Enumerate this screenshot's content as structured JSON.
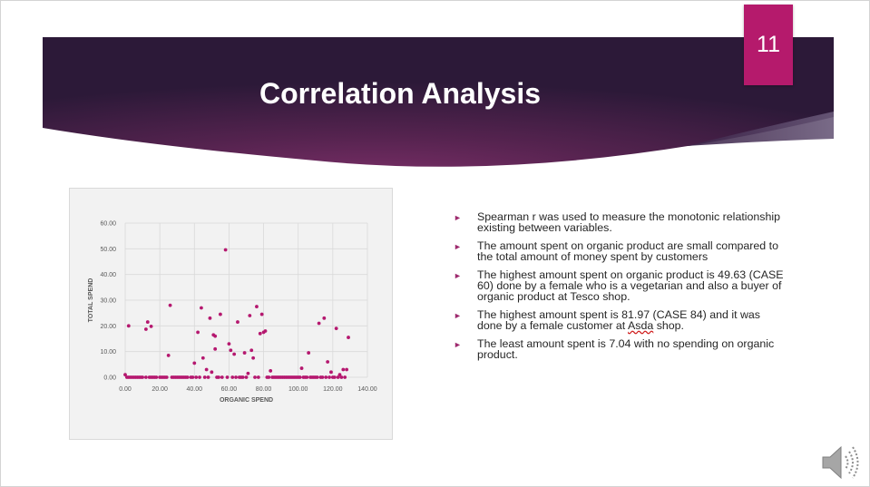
{
  "slide": {
    "number": "11",
    "title": "Correlation Analysis"
  },
  "bullets": [
    {
      "text": "Spearman r was used to measure the monotonic relationship existing between variables."
    },
    {
      "text": "The amount spent on organic product are small compared to the total amount of money spent by customers"
    },
    {
      "text": "The highest amount spent on organic product is 49.63 (CASE 60) done by a female who is a vegetarian and also a buyer of organic product at Tesco shop."
    },
    {
      "text_before": " The highest amount spent is 81.97 (CASE 84) and it was done by a female customer at ",
      "text_flagged": "Asda",
      "text_after": " shop."
    },
    {
      "text": "The least amount spent is 7.04 with no spending on organic product."
    }
  ],
  "icons": {
    "bullet": "triangle-right-icon",
    "audio": "speaker-icon"
  },
  "colors": {
    "banner_dark": "#3a1d45",
    "banner_mid": "#6e2a5f",
    "slide_number_bg": "#b51a6c",
    "marker": "#b5186f",
    "bullet_arrow": "#9e2a6e"
  },
  "chart_data": {
    "type": "scatter",
    "title": "",
    "xlabel": "ORGANIC SPEND",
    "ylabel": "TOTAL SPEND",
    "xlim": [
      0,
      140
    ],
    "ylim": [
      0,
      60
    ],
    "xticks": [
      "0.00",
      "20.00",
      "40.00",
      "60.00",
      "80.00",
      "100.00",
      "120.00",
      "140.00"
    ],
    "yticks": [
      "0.00",
      "10.00",
      "20.00",
      "30.00",
      "40.00",
      "50.00",
      "60.00"
    ],
    "grid": true,
    "marker_color": "#b5186f",
    "series": [
      {
        "points": [
          [
            2,
            20
          ],
          [
            12,
            18.7
          ],
          [
            13,
            21.5
          ],
          [
            15,
            19.8
          ],
          [
            25,
            8.5
          ],
          [
            26,
            28
          ],
          [
            40,
            5.5
          ],
          [
            42,
            17.5
          ],
          [
            44,
            27
          ],
          [
            45,
            7.5
          ],
          [
            47,
            3
          ],
          [
            49,
            23
          ],
          [
            50,
            2
          ],
          [
            51,
            16.5
          ],
          [
            52,
            16
          ],
          [
            52,
            11
          ],
          [
            55,
            24.5
          ],
          [
            58,
            49.6
          ],
          [
            60,
            13
          ],
          [
            61,
            10.5
          ],
          [
            63,
            9
          ],
          [
            65,
            21.5
          ],
          [
            69,
            9.5
          ],
          [
            71,
            1.5
          ],
          [
            72,
            24
          ],
          [
            73,
            10.5
          ],
          [
            74,
            7.5
          ],
          [
            76,
            27.5
          ],
          [
            78,
            17
          ],
          [
            79,
            24.5
          ],
          [
            80,
            17.5
          ],
          [
            81,
            18
          ],
          [
            84,
            2.5
          ],
          [
            102,
            3.5
          ],
          [
            106,
            9.5
          ],
          [
            112,
            21
          ],
          [
            115,
            23
          ],
          [
            117,
            6
          ],
          [
            119,
            2
          ],
          [
            122,
            19
          ],
          [
            124,
            1
          ],
          [
            126,
            3
          ],
          [
            128,
            3
          ],
          [
            129,
            15.5
          ],
          [
            0,
            1
          ],
          [
            1,
            0
          ],
          [
            2,
            0
          ],
          [
            3,
            0
          ],
          [
            4,
            0
          ],
          [
            5,
            0
          ],
          [
            6,
            0
          ],
          [
            7,
            0
          ],
          [
            8,
            0
          ],
          [
            9,
            0
          ],
          [
            10,
            0
          ],
          [
            12,
            0
          ],
          [
            14,
            0
          ],
          [
            15,
            0
          ],
          [
            16,
            0
          ],
          [
            17,
            0
          ],
          [
            18,
            0
          ],
          [
            20,
            0
          ],
          [
            21,
            0
          ],
          [
            22,
            0
          ],
          [
            23,
            0
          ],
          [
            24,
            0
          ],
          [
            27,
            0
          ],
          [
            28,
            0
          ],
          [
            29,
            0
          ],
          [
            30,
            0
          ],
          [
            31,
            0
          ],
          [
            32,
            0
          ],
          [
            33,
            0
          ],
          [
            34,
            0
          ],
          [
            35,
            0
          ],
          [
            36,
            0
          ],
          [
            38,
            0
          ],
          [
            39,
            0
          ],
          [
            41,
            0
          ],
          [
            43,
            0
          ],
          [
            46,
            0
          ],
          [
            48,
            0
          ],
          [
            53,
            0
          ],
          [
            54,
            0
          ],
          [
            56,
            0
          ],
          [
            59,
            0
          ],
          [
            62,
            0
          ],
          [
            64,
            0
          ],
          [
            66,
            0
          ],
          [
            67,
            0
          ],
          [
            68,
            0
          ],
          [
            70,
            0
          ],
          [
            75,
            0
          ],
          [
            77,
            0
          ],
          [
            82,
            0
          ],
          [
            83,
            0
          ],
          [
            85,
            0
          ],
          [
            86,
            0
          ],
          [
            87,
            0
          ],
          [
            88,
            0
          ],
          [
            89,
            0
          ],
          [
            90,
            0
          ],
          [
            91,
            0
          ],
          [
            92,
            0
          ],
          [
            93,
            0
          ],
          [
            94,
            0
          ],
          [
            95,
            0
          ],
          [
            96,
            0
          ],
          [
            97,
            0
          ],
          [
            98,
            0
          ],
          [
            99,
            0
          ],
          [
            100,
            0
          ],
          [
            101,
            0
          ],
          [
            103,
            0
          ],
          [
            104,
            0
          ],
          [
            105,
            0
          ],
          [
            107,
            0
          ],
          [
            108,
            0
          ],
          [
            109,
            0
          ],
          [
            110,
            0
          ],
          [
            111,
            0
          ],
          [
            113,
            0
          ],
          [
            114,
            0
          ],
          [
            116,
            0
          ],
          [
            118,
            0
          ],
          [
            120,
            0
          ],
          [
            121,
            0
          ],
          [
            123,
            0
          ],
          [
            125,
            0
          ],
          [
            127,
            0
          ]
        ]
      }
    ]
  }
}
